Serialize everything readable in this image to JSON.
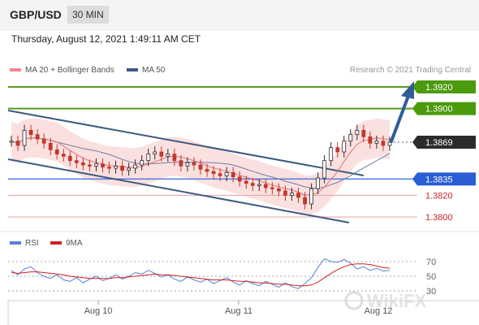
{
  "header": {
    "symbol": "GBP/USD",
    "timeframe": "30 MIN"
  },
  "timestamp": "Thursday, August 12, 2021 1:49:11 AM CET",
  "legend": {
    "ma20_label": "MA 20 + Bollinger Bands",
    "ma50_label": "MA 50",
    "ma20_color": "#e57373",
    "ma50_color": "#3d5a80"
  },
  "credit": "Research © 2021 Trading Central",
  "rsi_legend": {
    "rsi_label": "RSI",
    "ma_label": "9MA",
    "rsi_color": "#5b7fd6",
    "ma_color": "#cc2222"
  },
  "watermark": "WikiFX",
  "chart_data": [
    {
      "type": "line",
      "ylim": [
        1.379,
        1.393
      ],
      "x_ticks": [
        "Aug 10",
        "Aug 11",
        "Aug 12"
      ],
      "current_price": 1.3869,
      "levels": [
        {
          "label": "1.3920",
          "value": 1.392,
          "kind": "resistance"
        },
        {
          "label": "1.3900",
          "value": 1.39,
          "kind": "resistance"
        },
        {
          "label": "1.3869",
          "value": 1.3869,
          "kind": "current"
        },
        {
          "label": "1.3835",
          "value": 1.3835,
          "kind": "pivot"
        },
        {
          "label": "1.3820",
          "value": 1.382,
          "kind": "support"
        },
        {
          "label": "1.3800",
          "value": 1.38,
          "kind": "support"
        }
      ],
      "series": [
        {
          "values": [
            1.387,
            1.3866,
            1.388,
            1.3876,
            1.3872,
            1.3868,
            1.3862,
            1.3858,
            1.3856,
            1.3852,
            1.385,
            1.3848,
            1.3847,
            1.3849,
            1.3846,
            1.3845,
            1.3847,
            1.3843,
            1.3845,
            1.3848,
            1.3852,
            1.3858,
            1.386,
            1.3856,
            1.3858,
            1.3852,
            1.3847,
            1.385,
            1.3848,
            1.3844,
            1.3842,
            1.384,
            1.3838,
            1.3841,
            1.3837,
            1.3833,
            1.3831,
            1.3829,
            1.383,
            1.3827,
            1.3826,
            1.3824,
            1.382,
            1.3822,
            1.3818,
            1.3812,
            1.3826,
            1.3836,
            1.3852,
            1.3864,
            1.386,
            1.387,
            1.3876,
            1.388,
            1.3874,
            1.3868,
            1.387,
            1.3866,
            1.3869
          ]
        }
      ]
    },
    {
      "type": "line",
      "ylim": [
        20,
        80
      ],
      "y_ticks": [
        70,
        50,
        30
      ],
      "series": [
        {
          "name": "RSI",
          "values": [
            58,
            52,
            60,
            63,
            55,
            50,
            47,
            52,
            45,
            43,
            48,
            41,
            46,
            50,
            44,
            47,
            52,
            46,
            50,
            55,
            53,
            58,
            54,
            49,
            52,
            46,
            43,
            49,
            45,
            42,
            46,
            40,
            44,
            48,
            42,
            38,
            44,
            40,
            37,
            43,
            39,
            35,
            41,
            36,
            33,
            40,
            48,
            62,
            74,
            70,
            69,
            73,
            68,
            60,
            63,
            58,
            61,
            57,
            58
          ]
        },
        {
          "name": "9MA",
          "values": [
            55,
            54,
            55,
            56,
            56,
            55,
            54,
            53,
            52,
            50,
            49,
            48,
            47,
            47,
            47,
            47,
            48,
            48,
            49,
            50,
            51,
            52,
            53,
            52,
            52,
            51,
            50,
            49,
            48,
            47,
            46,
            45,
            45,
            45,
            44,
            43,
            43,
            42,
            41,
            41,
            40,
            39,
            39,
            38,
            37,
            37,
            38,
            42,
            48,
            54,
            59,
            63,
            66,
            67,
            67,
            66,
            64,
            62,
            61
          ]
        }
      ]
    }
  ]
}
